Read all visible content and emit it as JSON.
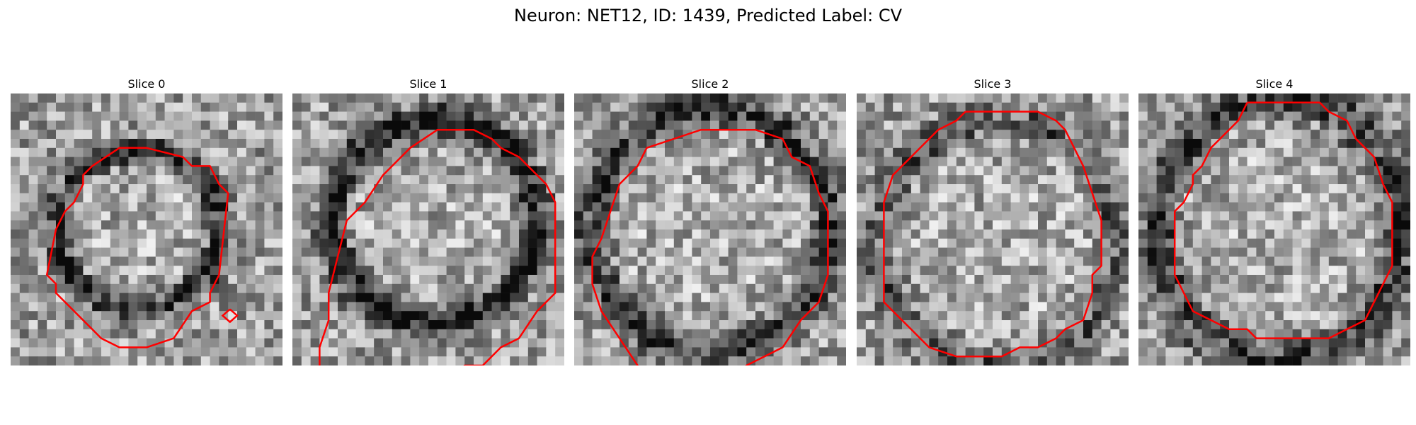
{
  "title": "Neuron: NET12, ID: 1439, Predicted Label: CV",
  "grid_size": 30,
  "contour_color": "#ff0000",
  "panels": [
    {
      "label": "Slice 0",
      "seed": 11,
      "ring_dark": 0.55,
      "ring": [
        0.47,
        0.5,
        0.3,
        0.29
      ],
      "contour": [
        [
          15,
          6
        ],
        [
          19,
          7
        ],
        [
          20,
          8
        ],
        [
          22,
          8
        ],
        [
          23,
          10
        ],
        [
          24,
          11
        ],
        [
          23,
          20
        ],
        [
          22,
          22
        ],
        [
          22,
          23
        ],
        [
          20,
          24
        ],
        [
          18,
          27
        ],
        [
          15,
          28
        ],
        [
          12,
          28
        ],
        [
          10,
          27
        ],
        [
          9,
          26
        ],
        [
          8,
          25
        ],
        [
          6,
          23
        ],
        [
          5,
          22
        ],
        [
          5,
          21
        ],
        [
          4,
          20
        ],
        [
          5,
          15
        ],
        [
          6,
          13
        ],
        [
          7,
          12
        ],
        [
          8,
          10
        ],
        [
          8,
          9
        ],
        [
          9,
          8
        ],
        [
          12,
          6
        ],
        [
          15,
          6
        ]
      ],
      "extra_contour": [
        [
          24.2,
          23.8
        ],
        [
          25,
          24.5
        ],
        [
          24.2,
          25.2
        ],
        [
          23.4,
          24.5
        ],
        [
          24.2,
          23.8
        ]
      ]
    },
    {
      "label": "Slice 1",
      "seed": 23,
      "ring_dark": 0.6,
      "ring": [
        0.52,
        0.47,
        0.38,
        0.37
      ],
      "contour": [
        [
          3,
          33
        ],
        [
          3,
          28
        ],
        [
          4,
          25
        ],
        [
          4,
          22
        ],
        [
          5,
          18
        ],
        [
          6,
          14
        ],
        [
          8,
          12
        ],
        [
          10,
          9
        ],
        [
          13,
          6
        ],
        [
          16,
          4
        ],
        [
          20,
          4
        ],
        [
          22,
          5
        ],
        [
          23,
          6
        ],
        [
          25,
          7
        ],
        [
          28,
          10
        ],
        [
          29,
          12
        ],
        [
          29,
          16
        ],
        [
          29,
          20
        ],
        [
          29,
          22
        ],
        [
          27,
          24
        ],
        [
          25,
          27
        ],
        [
          23,
          28
        ],
        [
          21,
          30
        ],
        [
          19,
          30
        ],
        [
          17,
          32
        ]
      ]
    },
    {
      "label": "Slice 2",
      "seed": 37,
      "ring_dark": 0.45,
      "ring": [
        0.5,
        0.5,
        0.44,
        0.44
      ],
      "contour": [
        [
          9,
          33
        ],
        [
          5,
          27
        ],
        [
          3,
          24
        ],
        [
          2,
          21
        ],
        [
          2,
          18
        ],
        [
          3,
          16
        ],
        [
          4,
          13
        ],
        [
          5,
          10
        ],
        [
          7,
          8
        ],
        [
          8,
          6
        ],
        [
          11,
          5
        ],
        [
          14,
          4
        ],
        [
          20,
          4
        ],
        [
          23,
          5
        ],
        [
          24,
          7
        ],
        [
          26,
          8
        ],
        [
          27,
          11
        ],
        [
          28,
          13
        ],
        [
          28,
          20
        ],
        [
          27,
          23
        ],
        [
          25,
          25
        ],
        [
          23,
          28
        ],
        [
          21,
          29
        ],
        [
          19,
          30
        ],
        [
          17,
          32
        ]
      ]
    },
    {
      "label": "Slice 3",
      "seed": 41,
      "ring_dark": 0.3,
      "ring": [
        0.52,
        0.55,
        0.44,
        0.45
      ],
      "contour": [
        [
          12,
          2
        ],
        [
          20,
          2
        ],
        [
          22,
          3
        ],
        [
          23,
          4
        ],
        [
          24,
          6
        ],
        [
          25,
          8
        ],
        [
          26,
          11
        ],
        [
          27,
          14
        ],
        [
          27,
          19
        ],
        [
          26,
          20
        ],
        [
          26,
          22
        ],
        [
          25,
          25
        ],
        [
          23,
          26
        ],
        [
          22,
          27
        ],
        [
          20,
          28
        ],
        [
          18,
          28
        ],
        [
          16,
          29
        ],
        [
          11,
          29
        ],
        [
          8,
          28
        ],
        [
          7,
          27
        ],
        [
          6,
          26
        ],
        [
          5,
          25
        ],
        [
          4,
          24
        ],
        [
          3,
          23
        ],
        [
          3,
          20
        ],
        [
          3,
          12
        ],
        [
          4,
          9
        ],
        [
          6,
          7
        ],
        [
          7,
          6
        ],
        [
          9,
          4
        ],
        [
          11,
          3
        ],
        [
          12,
          2
        ]
      ]
    },
    {
      "label": "Slice 4",
      "seed": 53,
      "ring_dark": 0.45,
      "ring": [
        0.52,
        0.5,
        0.45,
        0.48
      ],
      "contour": [
        [
          12,
          1
        ],
        [
          20,
          1
        ],
        [
          21,
          2
        ],
        [
          23,
          3
        ],
        [
          24,
          5
        ],
        [
          26,
          7
        ],
        [
          27,
          10
        ],
        [
          28,
          12
        ],
        [
          28,
          19
        ],
        [
          27,
          21
        ],
        [
          26,
          23
        ],
        [
          25,
          25
        ],
        [
          23,
          26
        ],
        [
          21,
          27
        ],
        [
          20,
          27
        ],
        [
          13,
          27
        ],
        [
          12,
          26
        ],
        [
          10,
          26
        ],
        [
          8,
          25
        ],
        [
          6,
          24
        ],
        [
          5,
          22
        ],
        [
          4,
          20
        ],
        [
          4,
          19
        ],
        [
          4,
          13
        ],
        [
          5,
          12
        ],
        [
          6,
          10
        ],
        [
          6,
          9
        ],
        [
          7,
          8
        ],
        [
          8,
          6
        ],
        [
          9,
          5
        ],
        [
          10,
          4
        ],
        [
          11,
          3
        ],
        [
          12,
          1
        ]
      ]
    }
  ]
}
